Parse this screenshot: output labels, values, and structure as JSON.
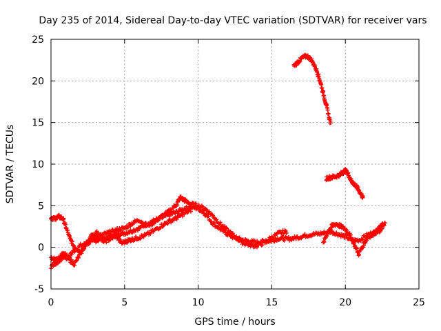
{
  "chart_data": {
    "type": "scatter",
    "title": "Day 235 of 2014, Sidereal Day-to-day VTEC variation (SDTVAR) for receiver vars",
    "xlabel": "GPS time / hours",
    "ylabel": "SDTVAR / TECUs",
    "xlim": [
      0,
      25
    ],
    "ylim": [
      -5,
      25
    ],
    "xticks": [
      "0",
      "5",
      "10",
      "15",
      "20",
      "25"
    ],
    "yticks": [
      "-5",
      "0",
      "5",
      "10",
      "15",
      "20",
      "25"
    ],
    "grid": true,
    "marker": "+",
    "series": [
      {
        "name": "vars",
        "color": "#ff0000",
        "segments": [
          {
            "x": [
              0.0,
              0.3,
              0.7,
              0.9,
              1.2,
              1.5,
              2.0,
              2.5,
              3.0,
              3.5,
              4.0,
              4.5,
              5.0,
              5.5,
              6.0,
              6.5,
              7.0,
              7.5,
              8.0,
              8.5,
              9.0,
              9.5,
              10.0,
              10.5,
              11.0,
              11.5,
              12.0,
              12.5,
              13.0,
              13.5,
              14.0,
              14.5,
              15.0,
              15.5,
              16.0,
              16.5,
              17.0,
              17.5,
              18.0,
              18.5,
              19.0,
              19.5,
              20.0,
              20.5,
              21.0,
              21.5,
              22.0,
              22.5
            ],
            "y": [
              -1.2,
              -1.5,
              -1.0,
              -0.8,
              -1.2,
              -0.5,
              0.2,
              0.5,
              0.8,
              1.0,
              1.3,
              1.6,
              1.7,
              2.0,
              2.3,
              2.8,
              3.2,
              3.5,
              3.9,
              4.2,
              4.6,
              4.8,
              4.7,
              4.0,
              2.9,
              2.2,
              1.6,
              1.1,
              0.9,
              0.7,
              0.6,
              0.7,
              0.8,
              1.1,
              1.0,
              1.1,
              1.3,
              1.5,
              1.6,
              1.7,
              1.9,
              1.6,
              1.3,
              0.8,
              0.9,
              1.5,
              1.8,
              2.2
            ]
          },
          {
            "x": [
              0.0,
              0.2,
              0.5,
              0.8,
              1.0,
              1.3,
              1.6,
              2.0,
              2.5,
              3.0,
              3.5,
              4.0,
              4.5,
              5.0,
              5.5,
              6.0,
              6.5,
              7.0,
              7.5,
              8.0,
              8.5,
              8.8,
              9.1,
              9.5,
              10.0,
              10.5,
              11.0,
              11.5,
              12.0,
              12.5,
              13.0,
              13.5,
              14.0,
              14.5,
              15.0,
              15.5,
              16.0
            ],
            "y": [
              3.6,
              3.4,
              3.7,
              3.5,
              2.5,
              1.0,
              0.0,
              -0.5,
              0.6,
              1.2,
              1.5,
              1.8,
              2.1,
              2.3,
              2.9,
              3.3,
              2.6,
              3.0,
              3.7,
              4.3,
              5.1,
              6.0,
              5.6,
              5.2,
              5.0,
              4.6,
              3.8,
              2.8,
              2.0,
              1.3,
              0.6,
              0.3,
              0.2,
              0.6,
              1.2,
              1.7,
              1.9
            ]
          },
          {
            "x": [
              0.0,
              0.4,
              0.8,
              1.2,
              1.6,
              2.0,
              2.4,
              2.8,
              3.2,
              3.6,
              4.0,
              4.4,
              4.8,
              5.2,
              5.6,
              6.0,
              6.5,
              7.0,
              7.5,
              8.0,
              8.5,
              9.0,
              9.5
            ],
            "y": [
              -2.3,
              -1.8,
              -1.2,
              -1.4,
              -2.0,
              -0.8,
              0.5,
              1.5,
              1.8,
              0.7,
              1.0,
              1.4,
              0.5,
              0.8,
              1.0,
              1.2,
              1.5,
              2.0,
              2.6,
              3.1,
              3.5,
              4.0,
              4.5
            ]
          },
          {
            "x": [
              16.5,
              16.8,
              17.1,
              17.4,
              17.7,
              18.0,
              18.2,
              18.4,
              18.6,
              18.8,
              19.0
            ],
            "y": [
              21.8,
              22.3,
              22.8,
              23.0,
              22.5,
              21.5,
              20.5,
              19.2,
              17.8,
              16.4,
              14.8
            ]
          },
          {
            "x": [
              18.7,
              19.0,
              19.3,
              19.6,
              19.8,
              20.0,
              20.2,
              20.4,
              20.6,
              20.8,
              21.0,
              21.2
            ],
            "y": [
              8.3,
              8.4,
              8.5,
              8.7,
              9.0,
              9.2,
              8.8,
              8.0,
              7.6,
              7.2,
              6.6,
              6.0
            ]
          },
          {
            "x": [
              18.5,
              18.8,
              19.1,
              19.4,
              19.7,
              20.0,
              20.3,
              20.6,
              20.9,
              21.2,
              21.5,
              21.8,
              22.1,
              22.4,
              22.7
            ],
            "y": [
              0.5,
              1.8,
              2.6,
              2.8,
              2.5,
              2.2,
              1.5,
              0.4,
              -0.8,
              0.2,
              1.2,
              1.5,
              1.9,
              2.5,
              2.9
            ]
          }
        ]
      }
    ]
  }
}
